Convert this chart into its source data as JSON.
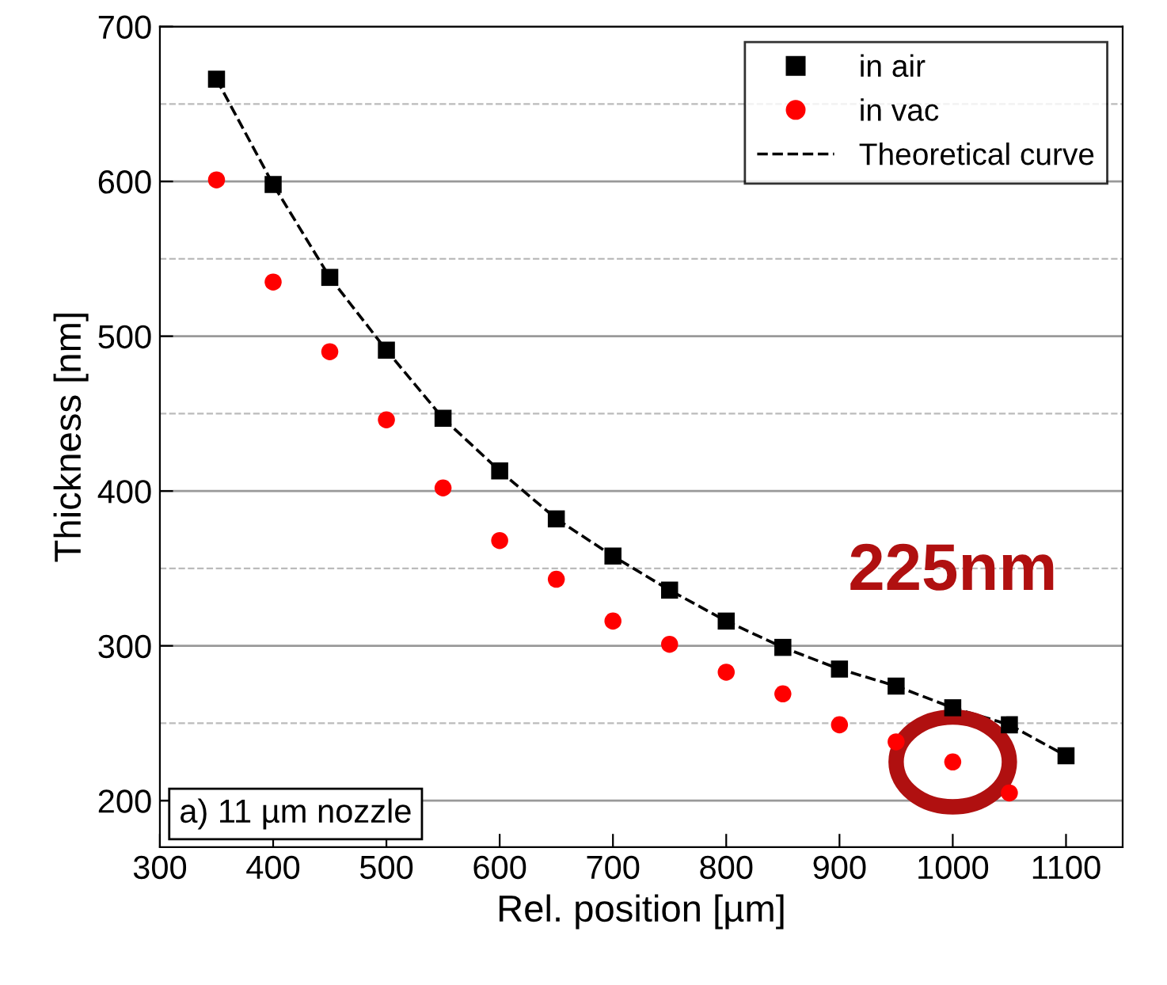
{
  "chart_data": {
    "type": "scatter",
    "xlabel": "Rel. position [µm]",
    "ylabel": "Thickness [nm]",
    "x": [
      350,
      400,
      450,
      500,
      550,
      600,
      650,
      700,
      750,
      800,
      850,
      900,
      950,
      1000,
      1050,
      1100
    ],
    "series": [
      {
        "name": "in air",
        "color": "#000000",
        "marker": "square",
        "values": [
          666,
          598,
          538,
          491,
          447,
          413,
          382,
          358,
          336,
          316,
          299,
          285,
          274,
          260,
          249,
          229
        ]
      },
      {
        "name": "in vac",
        "color": "#ff0000",
        "marker": "circle",
        "x": [
          350,
          400,
          450,
          500,
          550,
          600,
          650,
          700,
          750,
          800,
          850,
          900,
          950,
          1000,
          1050
        ],
        "values": [
          601,
          535,
          490,
          446,
          402,
          368,
          343,
          316,
          301,
          283,
          269,
          249,
          238,
          225,
          205
        ]
      },
      {
        "name": "Theoretical curve",
        "type": "line",
        "color": "#000000",
        "line_style": "dashed",
        "marker": "none",
        "values": [
          666,
          598,
          538,
          491,
          447,
          413,
          382,
          358,
          336,
          316,
          299,
          285,
          274,
          260,
          249,
          229
        ]
      }
    ],
    "annotations": [
      {
        "text": "225nm",
        "x": 1000,
        "y": 225
      },
      "a) 11 µm nozzle"
    ],
    "xlim": [
      300,
      1150
    ],
    "xticks": [
      300,
      400,
      500,
      600,
      700,
      800,
      900,
      1000,
      1100
    ],
    "ylim": [
      170,
      700
    ],
    "yticks": [
      200,
      300,
      400,
      500,
      600,
      700
    ],
    "grid": "y",
    "legend": "top right"
  }
}
